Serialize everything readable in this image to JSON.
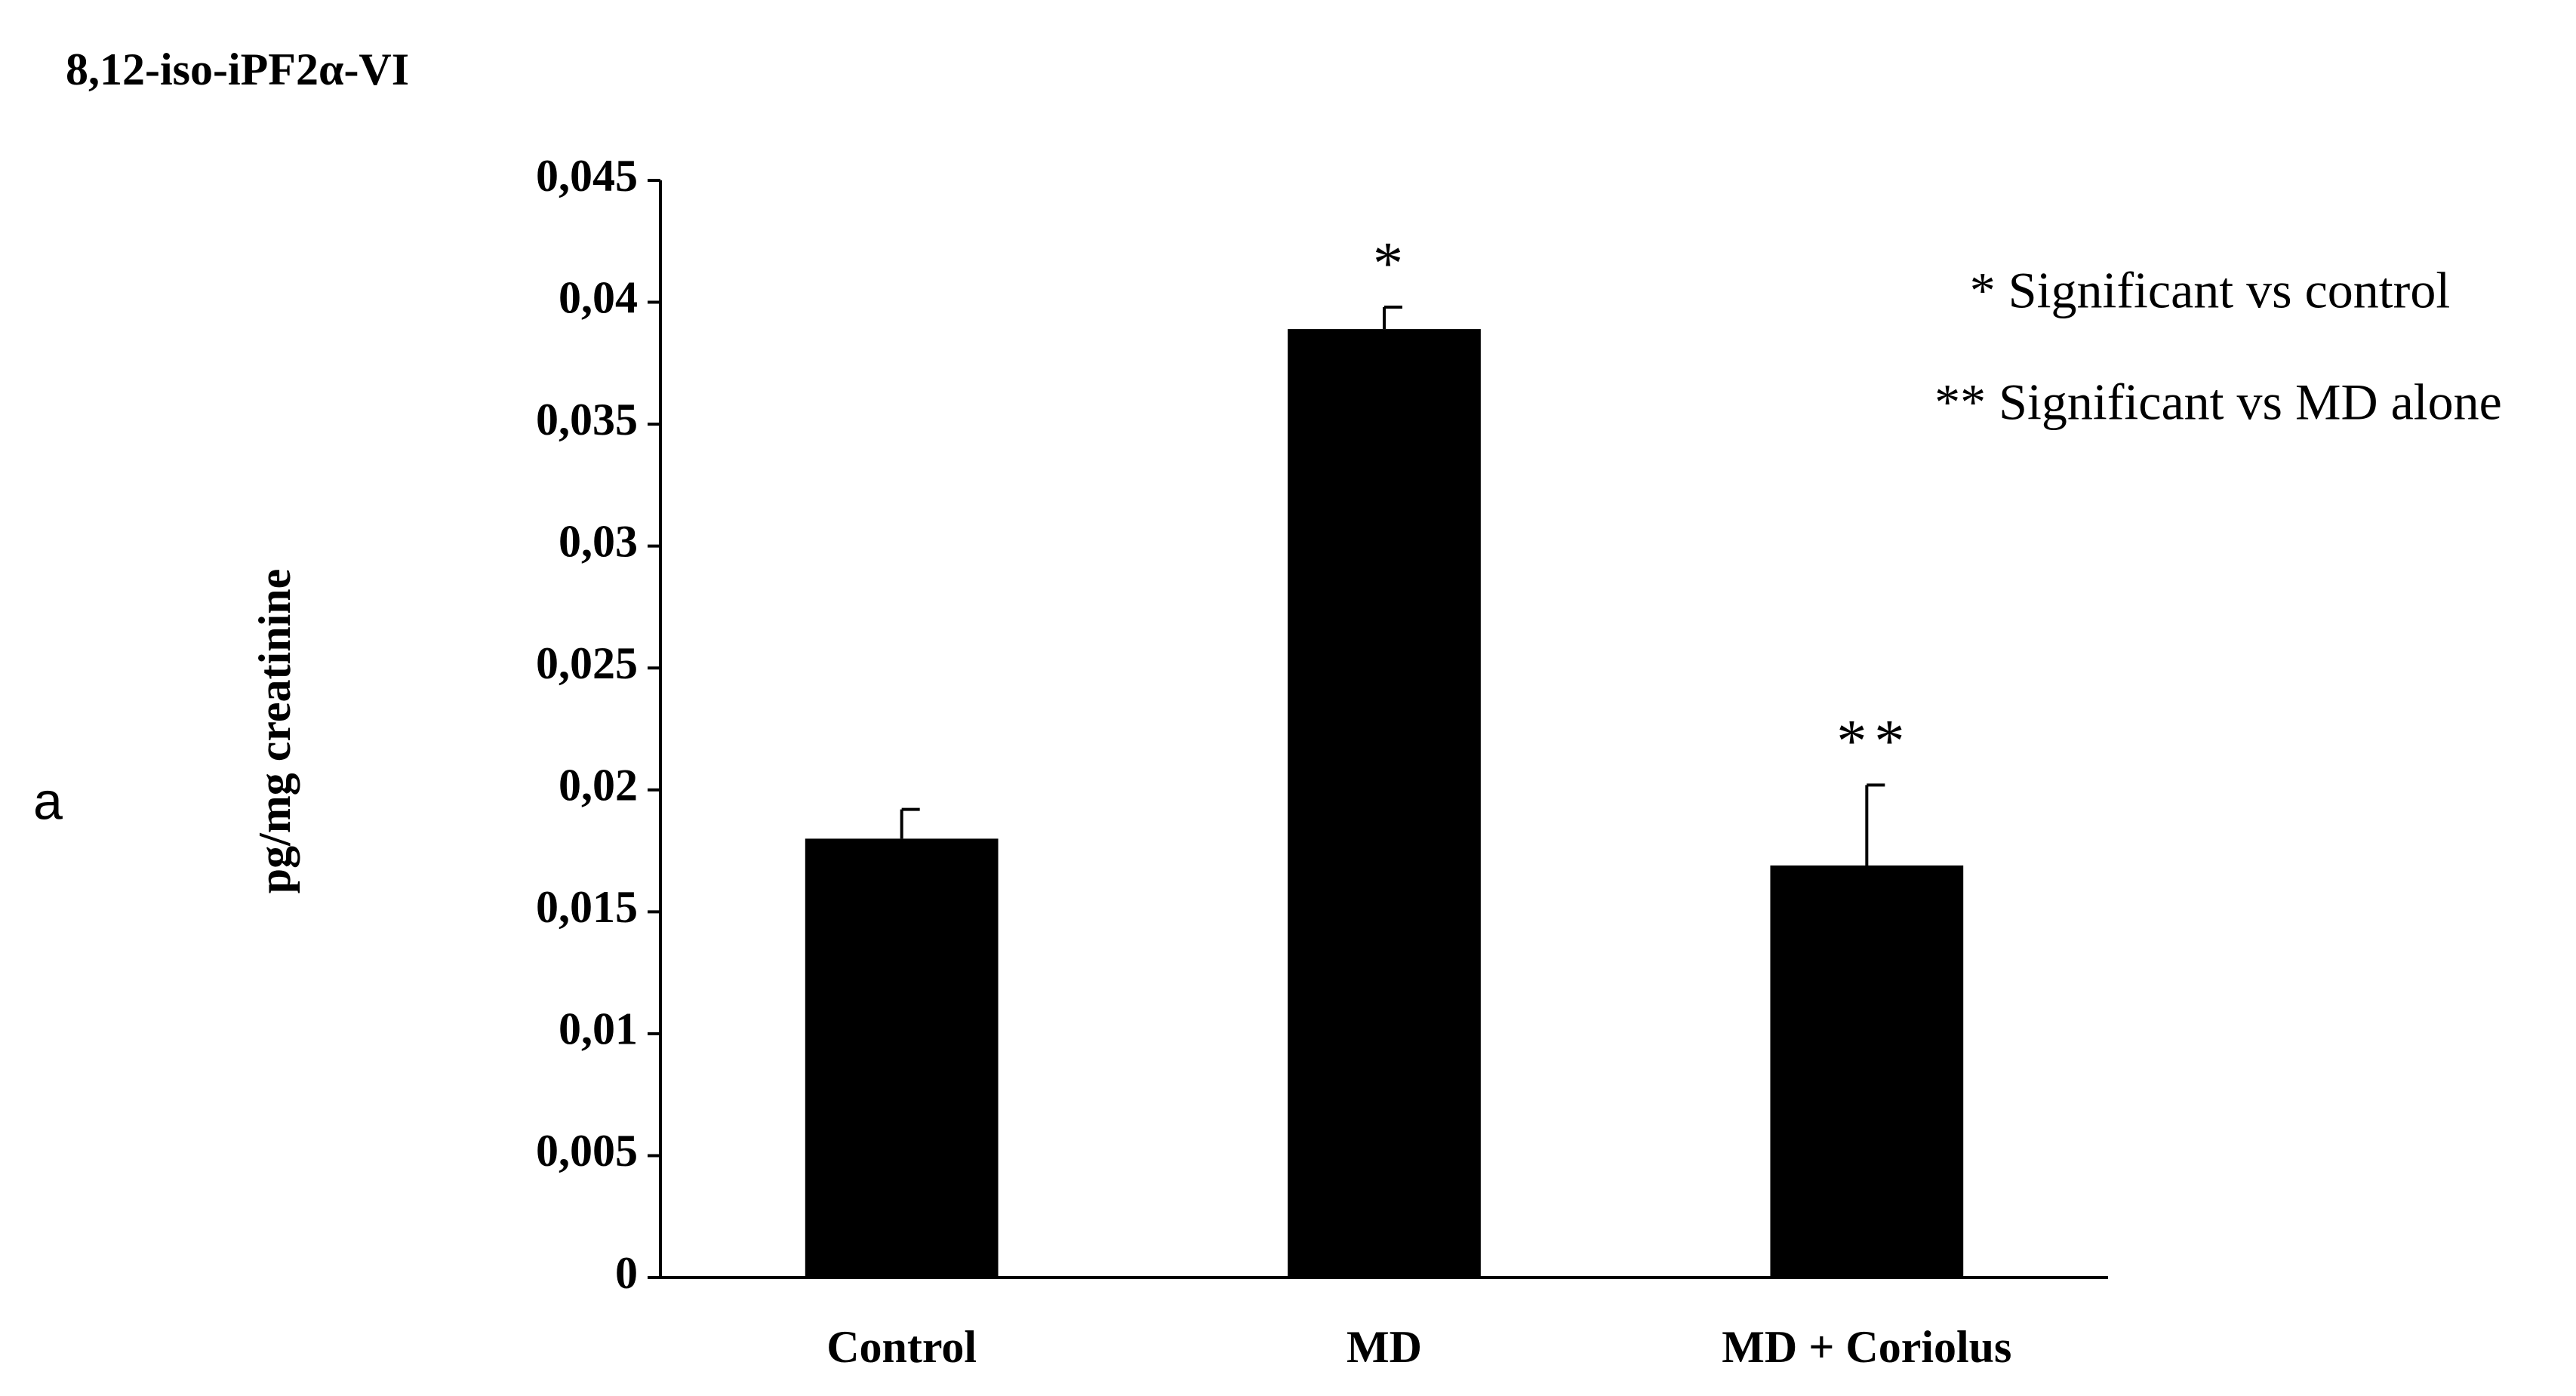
{
  "chart_data": {
    "type": "bar",
    "title": "8,12-iso-iPF2α-VI",
    "panel_label": "a",
    "y_label": "pg/mg creatinine",
    "categories": [
      "Control",
      "MD",
      "MD + Coriolus"
    ],
    "values": [
      0.018,
      0.0389,
      0.0169
    ],
    "errors": [
      0.0012,
      0.0009,
      0.0033
    ],
    "color": "#000000",
    "significance": [
      null,
      "*",
      "**"
    ],
    "notes": [
      "* Significant vs control",
      "** Significant vs MD alone"
    ],
    "ylim": [
      0,
      0.045
    ],
    "yticks": [
      0,
      {
        "value": 0.005,
        "label": "0,005"
      },
      {
        "value": 0.01,
        "label": "0,01"
      },
      {
        "value": 0.015,
        "label": "0,015"
      },
      {
        "value": 0.02,
        "label": "0,02"
      },
      {
        "value": 0.025,
        "label": "0,025"
      },
      {
        "value": 0.03,
        "label": "0,03"
      },
      {
        "value": 0.035,
        "label": "0,035"
      },
      {
        "value": 0.04,
        "label": "0,04"
      },
      {
        "value": 0.045,
        "label": "0,045"
      }
    ],
    "grid": false
  }
}
